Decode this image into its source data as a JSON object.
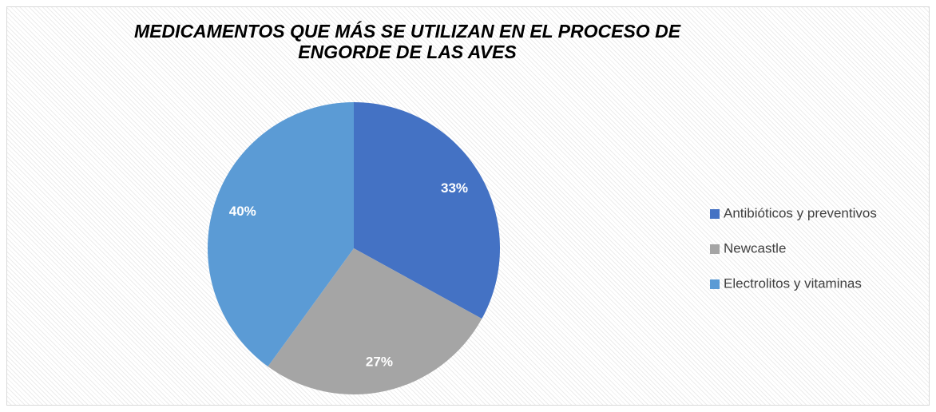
{
  "chart_data": {
    "type": "pie",
    "title": "MEDICAMENTOS QUE MÁS SE UTILIZAN EN EL PROCESO DE ENGORDE DE LAS AVES",
    "categories": [
      "Antibióticos y preventivos",
      "Newcastle",
      "Electrolitos y vitaminas"
    ],
    "values": [
      33,
      27,
      40
    ],
    "value_labels": [
      "33%",
      "27%",
      "40%"
    ],
    "colors": [
      "#4472c4",
      "#a5a5a5",
      "#5b9bd5"
    ],
    "legend": "right"
  }
}
